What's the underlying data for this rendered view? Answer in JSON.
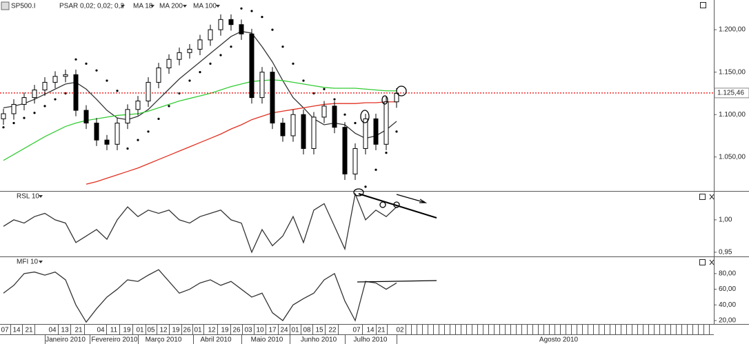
{
  "chart_data": [
    {
      "type": "candlestick",
      "title": "SP500.I",
      "open": [
        1095,
        1101,
        1112,
        1120,
        1129,
        1138,
        1145,
        1147,
        1105,
        1090,
        1070,
        1065,
        1090,
        1106,
        1116,
        1138,
        1155,
        1165,
        1173,
        1177,
        1188,
        1200,
        1212,
        1206,
        1195,
        1120,
        1150,
        1090,
        1075,
        1100,
        1060,
        1097,
        1110,
        1085,
        1030,
        1060,
        1095,
        1065,
        1115
      ],
      "high": [
        1107,
        1118,
        1126,
        1135,
        1144,
        1151,
        1153,
        1153,
        1111,
        1096,
        1076,
        1096,
        1112,
        1122,
        1144,
        1161,
        1171,
        1179,
        1183,
        1194,
        1206,
        1218,
        1218,
        1212,
        1201,
        1156,
        1156,
        1096,
        1106,
        1106,
        1103,
        1116,
        1116,
        1091,
        1066,
        1101,
        1101,
        1121,
        1131
      ],
      "low": [
        1088,
        1094,
        1105,
        1113,
        1122,
        1131,
        1138,
        1098,
        1083,
        1063,
        1058,
        1058,
        1083,
        1099,
        1109,
        1131,
        1148,
        1158,
        1166,
        1170,
        1181,
        1193,
        1199,
        1188,
        1113,
        1113,
        1083,
        1068,
        1068,
        1053,
        1053,
        1090,
        1078,
        1023,
        1023,
        1053,
        1058,
        1058,
        1108
      ],
      "close": [
        1101,
        1112,
        1120,
        1129,
        1138,
        1145,
        1147,
        1105,
        1090,
        1070,
        1065,
        1090,
        1106,
        1116,
        1138,
        1155,
        1165,
        1173,
        1177,
        1188,
        1200,
        1212,
        1206,
        1195,
        1120,
        1150,
        1090,
        1075,
        1100,
        1060,
        1097,
        1110,
        1085,
        1030,
        1060,
        1095,
        1065,
        1115,
        1125
      ],
      "series": [
        {
          "name": "PSAR 0,02; 0,02; 0,2",
          "color": "#000000",
          "style": "dots",
          "values": [
            1085,
            1090,
            1096,
            1102,
            1110,
            1118,
            1125,
            1165,
            1160,
            1152,
            1140,
            1128,
            1060,
            1070,
            1080,
            1095,
            1110,
            1125,
            1140,
            1150,
            1160,
            1170,
            1180,
            1225,
            1222,
            1215,
            1200,
            1180,
            1160,
            1140,
            1125,
            1130,
            1118,
            1100,
            1090,
            1015,
            1035,
            1055,
            1080
          ]
        },
        {
          "name": "MA 18",
          "color": "#333333",
          "style": "line",
          "values": [
            1108,
            1110,
            1113,
            1118,
            1124,
            1130,
            1136,
            1138,
            1130,
            1118,
            1105,
            1096,
            1094,
            1098,
            1106,
            1118,
            1130,
            1142,
            1152,
            1162,
            1172,
            1182,
            1192,
            1198,
            1196,
            1180,
            1162,
            1140,
            1120,
            1108,
            1095,
            1088,
            1090,
            1088,
            1078,
            1072,
            1075,
            1082,
            1092
          ]
        },
        {
          "name": "MA 200",
          "color": "#e03020",
          "style": "line",
          "values": [
            null,
            null,
            null,
            null,
            null,
            null,
            null,
            null,
            1018,
            1021,
            1025,
            1029,
            1033,
            1037,
            1042,
            1047,
            1052,
            1057,
            1062,
            1067,
            1072,
            1077,
            1083,
            1088,
            1094,
            1098,
            1102,
            1104,
            1106,
            1108,
            1110,
            1112,
            1113,
            1113,
            1113,
            1114,
            1114,
            1115,
            1115
          ]
        },
        {
          "name": "MA 100",
          "color": "#33cc33",
          "style": "line",
          "values": [
            1046,
            1053,
            1060,
            1067,
            1074,
            1080,
            1086,
            1090,
            1093,
            1095,
            1097,
            1099,
            1100,
            1101,
            1104,
            1108,
            1112,
            1116,
            1119,
            1122,
            1125,
            1129,
            1133,
            1136,
            1139,
            1140,
            1141,
            1140,
            1138,
            1136,
            1134,
            1132,
            1131,
            1131,
            1131,
            1130,
            1129,
            1128,
            1128
          ]
        }
      ],
      "reference": {
        "value": 1125.46,
        "label": "1.125,46"
      },
      "ylim": [
        1010,
        1235
      ],
      "yticks": [
        {
          "value": 1050,
          "label": "1.050,00"
        },
        {
          "value": 1100,
          "label": "1.100,00"
        },
        {
          "value": 1150,
          "label": "1.150,00"
        },
        {
          "value": 1200,
          "label": "1.200,00"
        }
      ],
      "date_labels": [
        "07",
        "14",
        "21",
        "04",
        "13",
        "21",
        "04",
        "11",
        "19",
        "01",
        "05",
        "12",
        "19",
        "26",
        "01",
        "12",
        "19",
        "26",
        "03",
        "10",
        "17",
        "24",
        "01",
        "08",
        "15",
        "22",
        "07",
        "14",
        "21",
        "02"
      ],
      "months": [
        "Janeiro 2010",
        "Fevereiro 2010",
        "Março 2010",
        "Abril 2010",
        "Maio 2010",
        "Junho 2010",
        "Julho 2010",
        "Agosto 2010"
      ]
    },
    {
      "type": "line",
      "title": "RSL 10",
      "series": [
        {
          "name": "RSL 10",
          "color": "#333333",
          "values": [
            0.99,
            1.0,
            0.995,
            1.005,
            1.01,
            1.0,
            0.995,
            0.965,
            0.975,
            0.985,
            0.97,
            1.0,
            1.02,
            1.005,
            1.015,
            1.01,
            1.015,
            1.0,
            0.995,
            1.005,
            1.01,
            1.015,
            1.0,
            0.995,
            0.95,
            0.985,
            0.96,
            0.975,
            1.005,
            0.965,
            1.015,
            1.025,
            0.99,
            0.955,
            1.04,
            1.0,
            1.015,
            1.005,
            1.02
          ]
        }
      ],
      "ylim": [
        0.9435,
        1.0435
      ],
      "yticks": [
        {
          "value": 0.95,
          "label": "0,95"
        },
        {
          "value": 1,
          "label": "1,00"
        }
      ]
    },
    {
      "type": "line",
      "title": "MFI 10",
      "series": [
        {
          "name": "MFI 10",
          "color": "#333333",
          "values": [
            55,
            65,
            80,
            82,
            78,
            82,
            72,
            40,
            18,
            35,
            50,
            60,
            72,
            70,
            78,
            85,
            70,
            55,
            60,
            68,
            72,
            65,
            70,
            60,
            50,
            55,
            30,
            20,
            40,
            48,
            55,
            72,
            80,
            45,
            20,
            70,
            68,
            60,
            68
          ]
        }
      ],
      "ylim": [
        15.6,
        101
      ],
      "yticks": [
        {
          "value": 20,
          "label": "20,00"
        },
        {
          "value": 40,
          "label": "40,00"
        },
        {
          "value": 60,
          "label": "60,00"
        },
        {
          "value": 80,
          "label": "80,00"
        }
      ]
    }
  ]
}
